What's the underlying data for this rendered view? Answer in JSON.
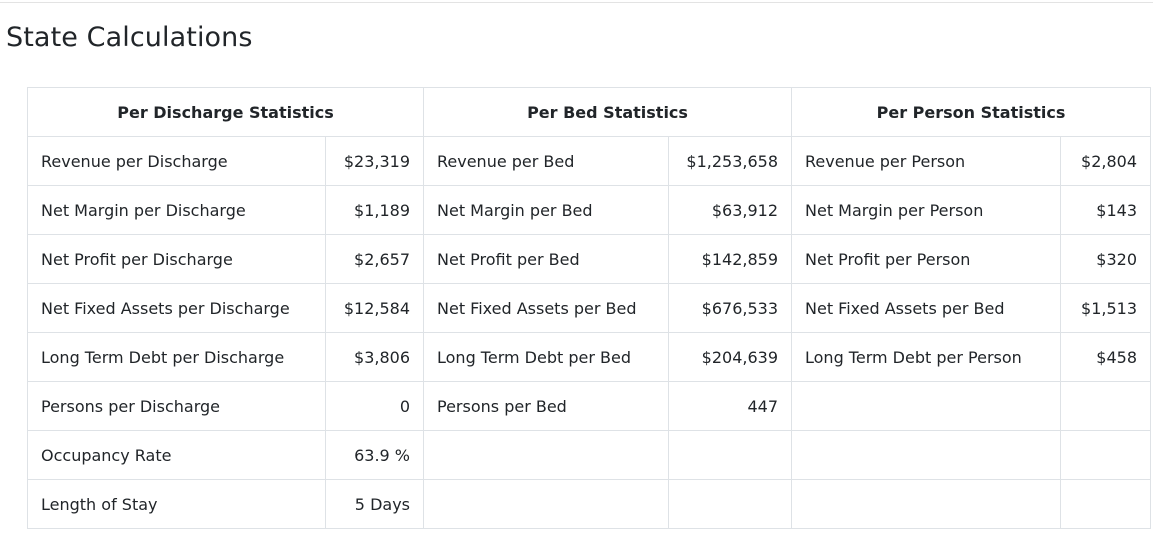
{
  "page": {
    "title": "State Calculations"
  },
  "table": {
    "headers": {
      "discharge": "Per Discharge Statistics",
      "bed": "Per Bed Statistics",
      "person": "Per Person Statistics"
    },
    "rows": [
      {
        "discharge_label": "Revenue per Discharge",
        "discharge_value": "$23,319",
        "bed_label": "Revenue per Bed",
        "bed_value": "$1,253,658",
        "person_label": "Revenue per Person",
        "person_value": "$2,804"
      },
      {
        "discharge_label": "Net Margin per Discharge",
        "discharge_value": "$1,189",
        "bed_label": "Net Margin per Bed",
        "bed_value": "$63,912",
        "person_label": "Net Margin per Person",
        "person_value": "$143"
      },
      {
        "discharge_label": "Net Profit per Discharge",
        "discharge_value": "$2,657",
        "bed_label": "Net Profit per Bed",
        "bed_value": "$142,859",
        "person_label": "Net Profit per Person",
        "person_value": "$320"
      },
      {
        "discharge_label": "Net Fixed Assets per Discharge",
        "discharge_value": "$12,584",
        "bed_label": "Net Fixed Assets per Bed",
        "bed_value": "$676,533",
        "person_label": "Net Fixed Assets per Bed",
        "person_value": "$1,513"
      },
      {
        "discharge_label": "Long Term Debt per Discharge",
        "discharge_value": "$3,806",
        "bed_label": "Long Term Debt per Bed",
        "bed_value": "$204,639",
        "person_label": "Long Term Debt per Person",
        "person_value": "$458"
      },
      {
        "discharge_label": "Persons per Discharge",
        "discharge_value": "0",
        "bed_label": "Persons per Bed",
        "bed_value": "447",
        "person_label": "",
        "person_value": ""
      },
      {
        "discharge_label": "Occupancy Rate",
        "discharge_value": "63.9 %",
        "bed_label": "",
        "bed_value": "",
        "person_label": "",
        "person_value": ""
      },
      {
        "discharge_label": "Length of Stay",
        "discharge_value": "5 Days",
        "bed_label": "",
        "bed_value": "",
        "person_label": "",
        "person_value": ""
      }
    ]
  }
}
